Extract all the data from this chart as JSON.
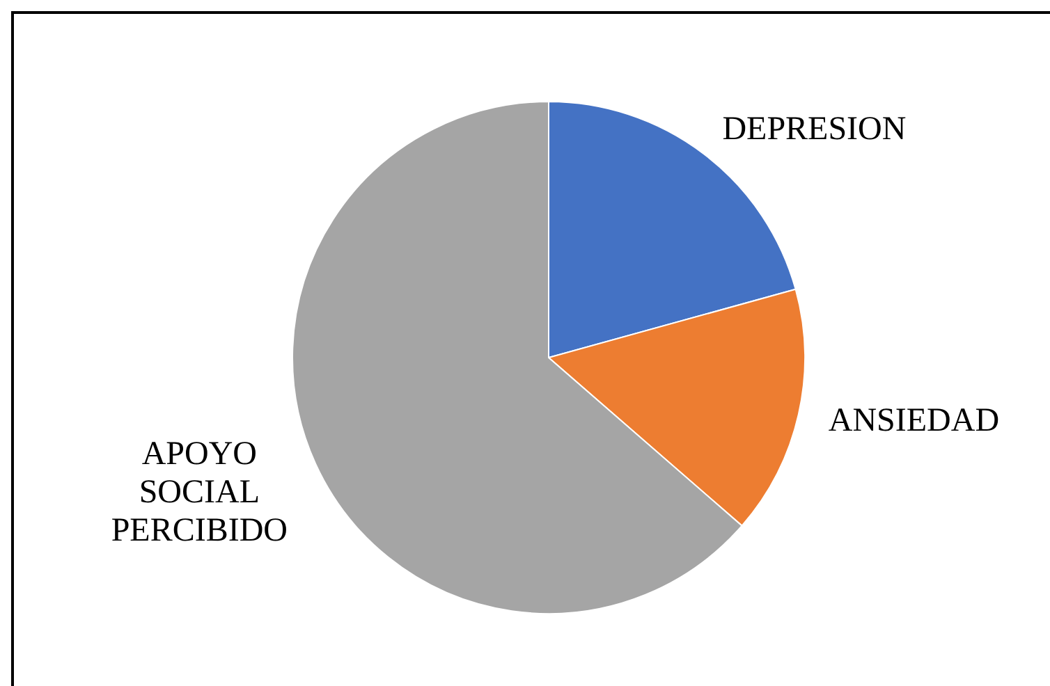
{
  "chart_data": {
    "type": "pie",
    "categories": [
      "DEPRESION",
      "ANSIEDAD",
      "APOYO SOCIAL PERCIBIDO"
    ],
    "values": [
      20.7,
      15.7,
      63.6
    ],
    "colors": [
      "#4472c4",
      "#ed7d31",
      "#a5a5a5"
    ],
    "legend": false
  }
}
